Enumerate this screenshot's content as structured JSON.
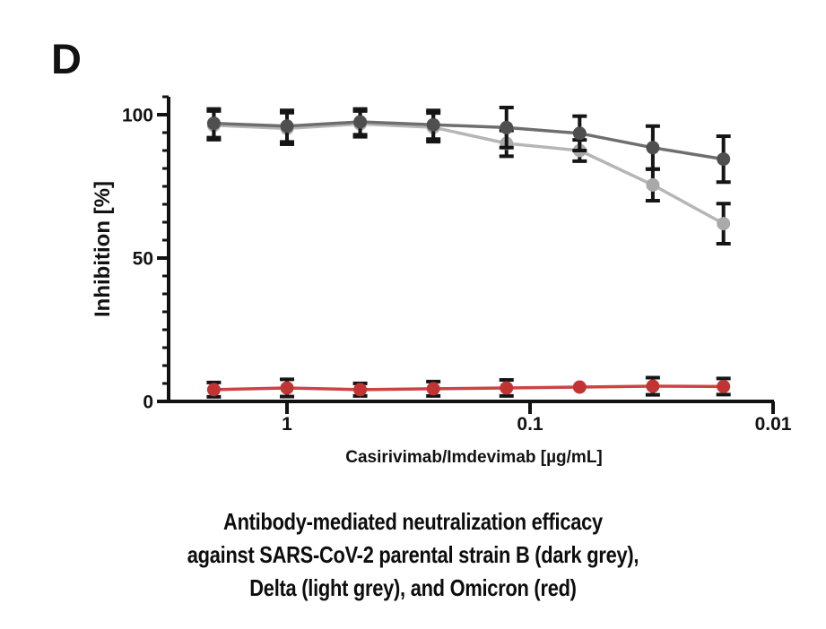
{
  "panel_label": "D",
  "caption": {
    "lines": [
      "Antibody-mediated neutralization efficacy",
      "against SARS-CoV-2 parental strain B (dark grey),",
      "Delta (light grey), and Omicron (red)"
    ]
  },
  "chart_data": {
    "type": "line",
    "title": "",
    "legend_position": "none",
    "grid": false,
    "x_axis": {
      "label": "Casirivimab/Imdevimab [µg/mL]",
      "scale": "log-reversed",
      "ticks": [
        {
          "label": "1",
          "value": 1
        },
        {
          "label": "0.1",
          "value": 0.1
        },
        {
          "label": "0.01",
          "value": 0.01
        }
      ]
    },
    "y_axis": {
      "label": "Inhibition [%]",
      "range": [
        0,
        106.25
      ],
      "minor_tick_step": 6.25,
      "ticks": [
        {
          "label": "0",
          "value": 0
        },
        {
          "label": "50",
          "value": 50
        },
        {
          "label": "100",
          "value": 100
        }
      ]
    },
    "x": [
      2,
      1,
      0.5,
      0.25,
      0.125,
      0.0625,
      0.03125,
      0.016
    ],
    "series": [
      {
        "id": "parental-b",
        "name": "SARS-CoV-2 parental strain B (dark grey)",
        "color_line": "#6e6e6e",
        "color_marker": "#4f4f4f",
        "z": 2,
        "values": [
          97,
          96,
          97.5,
          96.5,
          95.5,
          93.5,
          88.5,
          84.5
        ],
        "errors": [
          5,
          5.5,
          4.5,
          5,
          7,
          6,
          7.5,
          8
        ]
      },
      {
        "id": "delta",
        "name": "Delta (light grey)",
        "color_line": "#b6b6b6",
        "color_marker": "#a9a9a9",
        "z": 1,
        "values": [
          96.3,
          95.2,
          96.8,
          95.6,
          90,
          87.5,
          75.5,
          62
        ],
        "errors": [
          5,
          5.5,
          4.5,
          5,
          4.5,
          3.7,
          5.5,
          7
        ]
      },
      {
        "id": "omicron",
        "name": "Omicron (red)",
        "color_line": "#cd4343",
        "color_marker": "#c23434",
        "z": 3,
        "values": [
          4.1,
          4.7,
          4.1,
          4.4,
          4.7,
          5,
          5.3,
          5.2
        ],
        "errors": [
          2.5,
          3,
          2.2,
          2.5,
          2.8,
          0,
          3,
          2.8
        ]
      }
    ],
    "error_bar_color": "#151515"
  }
}
